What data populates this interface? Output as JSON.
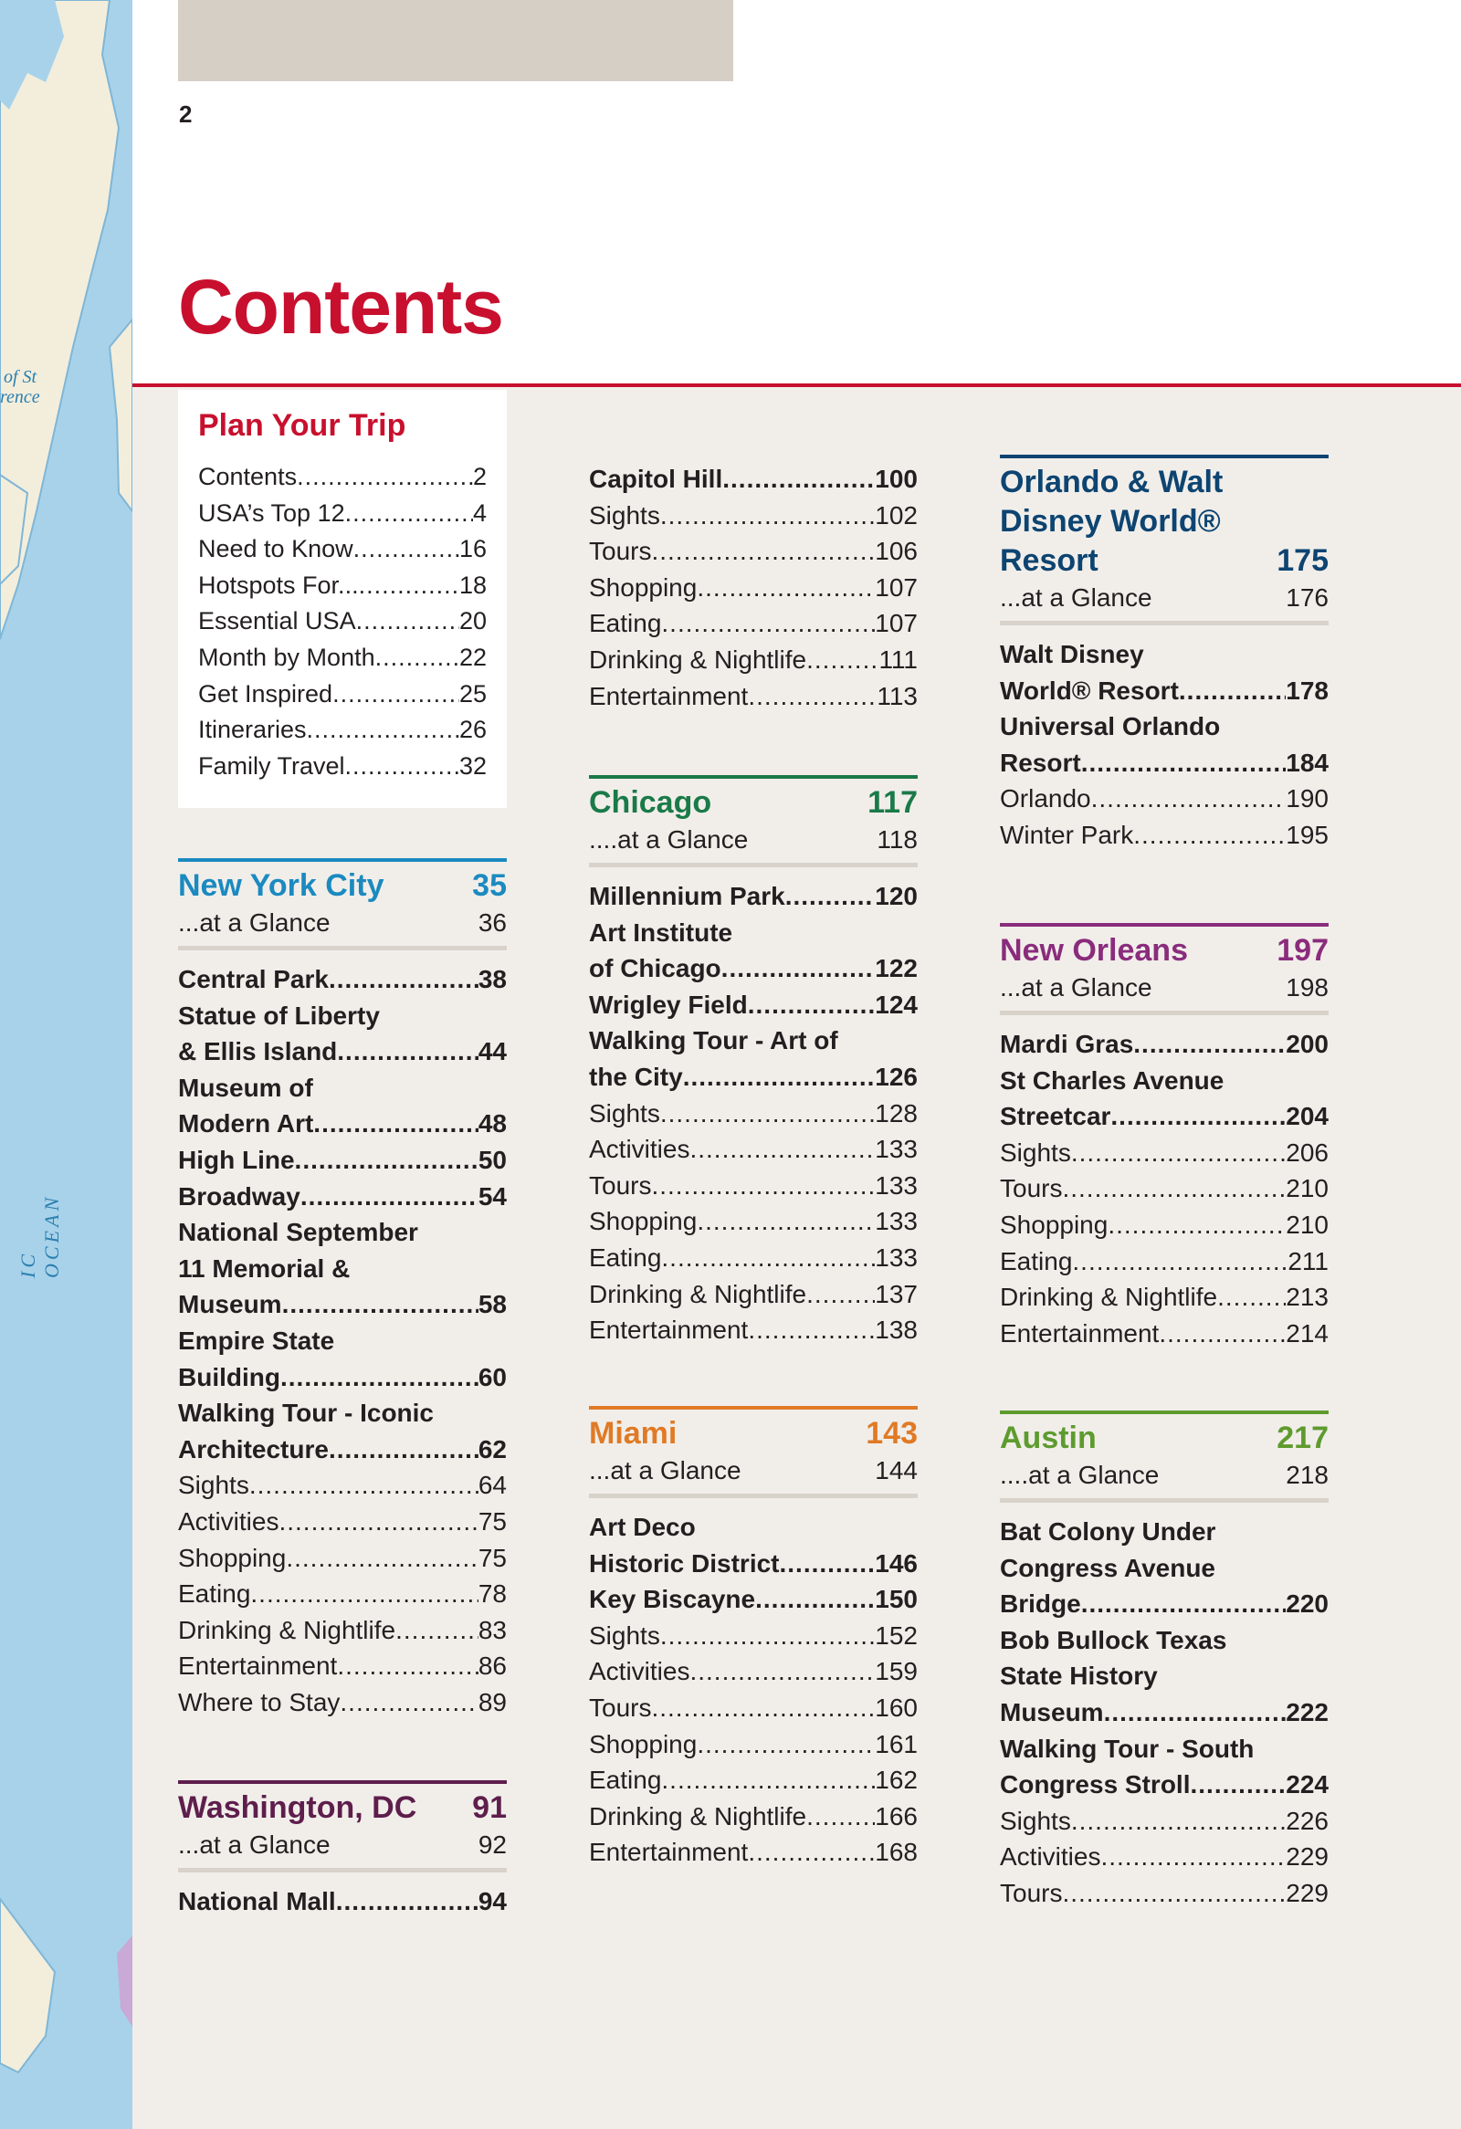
{
  "page_number": "2",
  "title": "Contents",
  "map": {
    "labels": [
      "of St",
      "rence",
      "IC OCEAN"
    ]
  },
  "colors": {
    "accent": "#c8102e",
    "nyc": "#1b8ac0",
    "washington": "#5e1e4c",
    "chicago": "#1a7a48",
    "miami": "#e07a25",
    "orlando": "#0d4471",
    "new_orleans": "#8a2c7c",
    "austin": "#5e9b2e"
  },
  "plan": {
    "heading": "Plan Your Trip",
    "entries": [
      {
        "title": "Contents",
        "page": "2"
      },
      {
        "title": "USA’s Top 12",
        "page": "4"
      },
      {
        "title": "Need to Know",
        "page": "16"
      },
      {
        "title": "Hotspots For...",
        "page": "18"
      },
      {
        "title": "Essential USA",
        "page": "20"
      },
      {
        "title": "Month by Month",
        "page": "22"
      },
      {
        "title": "Get Inspired",
        "page": "25"
      },
      {
        "title": "Itineraries",
        "page": "26"
      },
      {
        "title": "Family Travel",
        "page": "32"
      }
    ]
  },
  "sections": [
    {
      "id": "nyc",
      "color": "#1b8ac0",
      "title_lines": [
        "New York City"
      ],
      "page": "35",
      "glance": {
        "label": "...at a Glance",
        "page": "36"
      },
      "entries": [
        {
          "bold": true,
          "title": "Central Park",
          "page": "38"
        },
        {
          "bold": true,
          "pre": [
            "Statue of Liberty"
          ],
          "title": "& Ellis Island",
          "page": "44"
        },
        {
          "bold": true,
          "pre": [
            "Museum of"
          ],
          "title": "Modern Art",
          "page": "48"
        },
        {
          "bold": true,
          "title": "High Line",
          "page": "50"
        },
        {
          "bold": true,
          "title": "Broadway",
          "page": "54"
        },
        {
          "bold": true,
          "pre": [
            "National September",
            "11 Memorial &"
          ],
          "title": "Museum",
          "page": "58"
        },
        {
          "bold": true,
          "pre": [
            "Empire State"
          ],
          "title": "Building",
          "page": "60"
        },
        {
          "bold": true,
          "pre": [
            "Walking Tour - Iconic"
          ],
          "title": "Architecture",
          "page": "62"
        },
        {
          "title": "Sights",
          "page": "64"
        },
        {
          "title": "Activities",
          "page": "75"
        },
        {
          "title": "Shopping",
          "page": "75"
        },
        {
          "title": "Eating",
          "page": "78"
        },
        {
          "title": "Drinking & Nightlife",
          "page": "83"
        },
        {
          "title": "Entertainment",
          "page": "86"
        },
        {
          "title": "Where to Stay",
          "page": "89"
        }
      ]
    },
    {
      "id": "washington",
      "color": "#5e1e4c",
      "title_lines": [
        "Washington, DC"
      ],
      "page": "91",
      "glance": {
        "label": "...at a Glance",
        "page": "92"
      },
      "entries": [
        {
          "bold": true,
          "title": "National Mall",
          "page": "94"
        }
      ]
    },
    {
      "id": "capitol",
      "entries": [
        {
          "bold": true,
          "title": "Capitol Hill",
          "page": "100"
        },
        {
          "title": "Sights",
          "page": "102"
        },
        {
          "title": "Tours",
          "page": "106"
        },
        {
          "title": "Shopping",
          "page": "107"
        },
        {
          "title": "Eating",
          "page": "107"
        },
        {
          "title": "Drinking & Nightlife",
          "page": "111"
        },
        {
          "title": "Entertainment",
          "page": "113"
        }
      ]
    },
    {
      "id": "chicago",
      "color": "#1a7a48",
      "title_lines": [
        "Chicago"
      ],
      "page": "117",
      "glance": {
        "label": "....at a Glance",
        "page": "118"
      },
      "entries": [
        {
          "bold": true,
          "title": "Millennium Park",
          "page": "120"
        },
        {
          "bold": true,
          "pre": [
            "Art Institute"
          ],
          "title": "of Chicago",
          "page": "122"
        },
        {
          "bold": true,
          "title": "Wrigley Field",
          "page": "124"
        },
        {
          "bold": true,
          "pre": [
            "Walking Tour - Art of"
          ],
          "title": "the City",
          "page": "126"
        },
        {
          "title": "Sights",
          "page": "128"
        },
        {
          "title": "Activities",
          "page": "133"
        },
        {
          "title": "Tours",
          "page": "133"
        },
        {
          "title": "Shopping",
          "page": "133"
        },
        {
          "title": "Eating",
          "page": "133"
        },
        {
          "title": "Drinking & Nightlife",
          "page": "137"
        },
        {
          "title": "Entertainment",
          "page": "138"
        }
      ]
    },
    {
      "id": "miami",
      "color": "#e07a25",
      "title_lines": [
        "Miami"
      ],
      "page": "143",
      "glance": {
        "label": "...at a Glance",
        "page": "144"
      },
      "entries": [
        {
          "bold": true,
          "pre": [
            "Art Deco"
          ],
          "title": "Historic District",
          "page": "146"
        },
        {
          "bold": true,
          "title": "Key Biscayne",
          "page": "150"
        },
        {
          "title": "Sights",
          "page": "152"
        },
        {
          "title": "Activities",
          "page": "159"
        },
        {
          "title": "Tours",
          "page": "160"
        },
        {
          "title": "Shopping",
          "page": "161"
        },
        {
          "title": "Eating",
          "page": "162"
        },
        {
          "title": "Drinking & Nightlife",
          "page": "166"
        },
        {
          "title": "Entertainment",
          "page": "168"
        }
      ]
    },
    {
      "id": "orlando",
      "color": "#0d4471",
      "title_lines": [
        "Orlando & Walt",
        "Disney World®",
        "Resort"
      ],
      "page": "175",
      "glance": {
        "label": "...at a Glance",
        "page": "176"
      },
      "entries": [
        {
          "bold": true,
          "pre": [
            "Walt Disney"
          ],
          "title": "World® Resort",
          "page": "178"
        },
        {
          "bold": true,
          "pre": [
            "Universal Orlando"
          ],
          "title": "Resort",
          "page": "184"
        },
        {
          "title": "Orlando",
          "page": "190"
        },
        {
          "title": "Winter Park",
          "page": "195"
        }
      ]
    },
    {
      "id": "neworleans",
      "color": "#8a2c7c",
      "title_lines": [
        "New Orleans"
      ],
      "page": "197",
      "glance": {
        "label": "...at a Glance",
        "page": "198"
      },
      "entries": [
        {
          "bold": true,
          "title": "Mardi Gras",
          "page": "200"
        },
        {
          "bold": true,
          "pre": [
            "St Charles Avenue"
          ],
          "title": "Streetcar",
          "page": "204"
        },
        {
          "title": "Sights",
          "page": "206"
        },
        {
          "title": "Tours",
          "page": "210"
        },
        {
          "title": "Shopping",
          "page": "210"
        },
        {
          "title": "Eating",
          "page": "211"
        },
        {
          "title": "Drinking & Nightlife",
          "page": "213"
        },
        {
          "title": "Entertainment",
          "page": "214"
        }
      ]
    },
    {
      "id": "austin",
      "color": "#5e9b2e",
      "title_lines": [
        "Austin"
      ],
      "page": "217",
      "glance": {
        "label": "....at a Glance",
        "page": "218"
      },
      "entries": [
        {
          "bold": true,
          "pre": [
            "Bat Colony Under",
            "Congress Avenue"
          ],
          "title": "Bridge",
          "page": "220"
        },
        {
          "bold": true,
          "pre": [
            "Bob Bullock Texas",
            "State History"
          ],
          "title": "Museum",
          "page": "222"
        },
        {
          "bold": true,
          "pre": [
            "Walking Tour - South"
          ],
          "title": "Congress Stroll",
          "page": "224"
        },
        {
          "title": "Sights",
          "page": "226"
        },
        {
          "title": "Activities",
          "page": "229"
        },
        {
          "title": "Tours",
          "page": "229"
        }
      ]
    }
  ]
}
